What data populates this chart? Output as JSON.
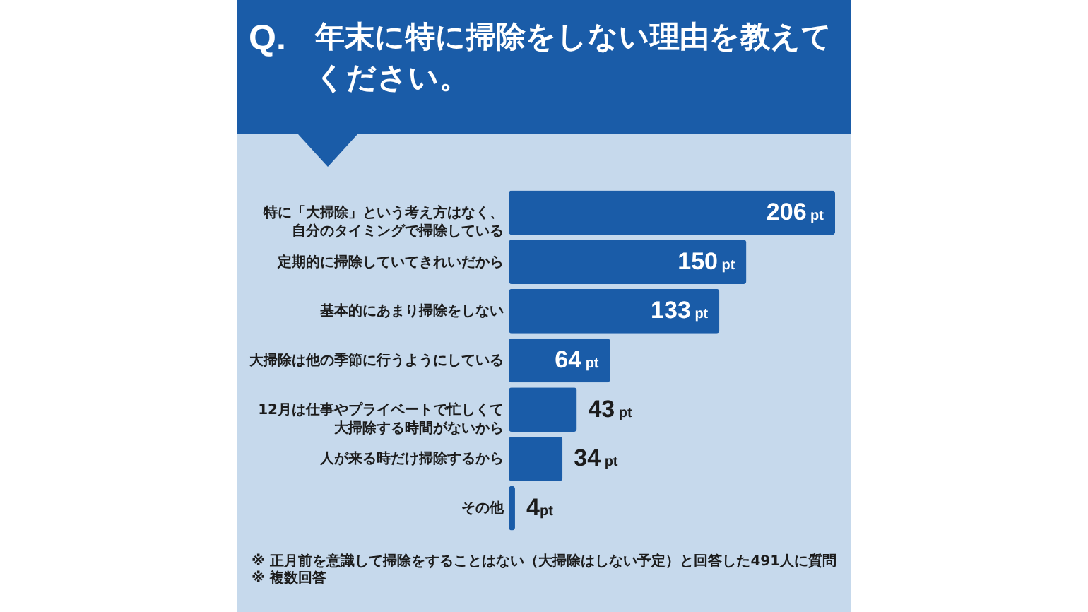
{
  "chart_data": {
    "type": "bar",
    "orientation": "horizontal",
    "title": "Q. 年末に特に掃除をしない理由を教えてください。",
    "categories": [
      "特に「大掃除」という考え方はなく、自分のタイミングで掃除している",
      "定期的に掃除していてきれいだから",
      "基本的にあまり掃除をしない",
      "大掃除は他の季節に行うようにしている",
      "12月は仕事やプライベートで忙しくて大掃除する時間がないから",
      "人が来る時だけ掃除するから",
      "その他"
    ],
    "values": [
      206,
      150,
      133,
      64,
      43,
      34,
      4
    ],
    "value_labels": [
      "206 pt",
      "150 pt",
      "133 pt",
      "64 pt",
      "43 pt",
      "34 pt",
      "4pt"
    ],
    "color": "#1a5ca8",
    "tick_labels": "y",
    "annotations": [
      "※ 正月前を意識して掃除をすることはない（大掃除はしない予定）と回答した491人に質問",
      "※ 複数回答"
    ]
  }
}
